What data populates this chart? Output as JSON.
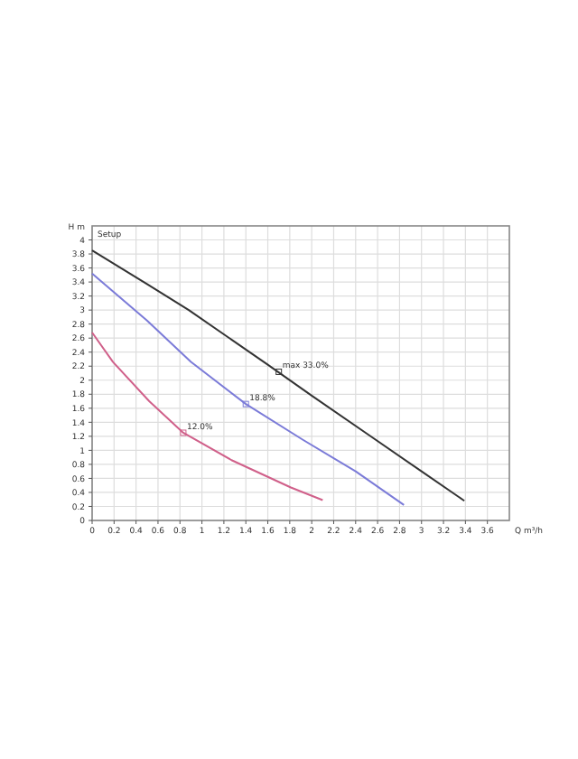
{
  "chart_data": {
    "type": "line",
    "xlabel": "Q m³/h",
    "ylabel": "H m",
    "xlim": [
      0,
      3.8
    ],
    "xticks": [
      0,
      0.2,
      0.4,
      0.6,
      0.8,
      1,
      1.2,
      1.4,
      1.6,
      1.8,
      2,
      2.2,
      2.4,
      2.6,
      2.8,
      3,
      3.2,
      3.4,
      3.6
    ],
    "ylim": [
      0,
      4.2
    ],
    "yticks": [
      0,
      0.2,
      0.4,
      0.6,
      0.8,
      1,
      1.2,
      1.4,
      1.6,
      1.8,
      2,
      2.2,
      2.4,
      2.6,
      2.8,
      3,
      3.2,
      3.4,
      3.6,
      3.8,
      4
    ],
    "grid": true,
    "marker": "none",
    "line_style": "solid",
    "series": [
      {
        "color": "#333333",
        "x": [
          0,
          0.5,
          0.88,
          1.6,
          2,
          2.5,
          3,
          3.39
        ],
        "values": [
          3.85,
          3.37,
          3.0,
          2.22,
          1.78,
          1.24,
          0.7,
          0.28
        ]
      },
      {
        "color": "#7b7bd8",
        "x": [
          0,
          0.5,
          0.9,
          1.4,
          1.92,
          2.4,
          2.84
        ],
        "values": [
          3.52,
          2.85,
          2.26,
          1.66,
          1.15,
          0.7,
          0.22
        ]
      },
      {
        "color": "#d0608a",
        "x": [
          0,
          0.19,
          0.52,
          0.83,
          1.27,
          1.81,
          2.1
        ],
        "values": [
          2.68,
          2.26,
          1.7,
          1.25,
          0.86,
          0.47,
          0.29
        ]
      }
    ],
    "annotations": [
      "Setup",
      {
        "text": "max  33.0%",
        "x": 1.7,
        "y": 2.12
      },
      {
        "text": "18.8%",
        "x": 1.4,
        "y": 1.66
      },
      {
        "text": "12.0%",
        "x": 0.83,
        "y": 1.25
      }
    ]
  }
}
